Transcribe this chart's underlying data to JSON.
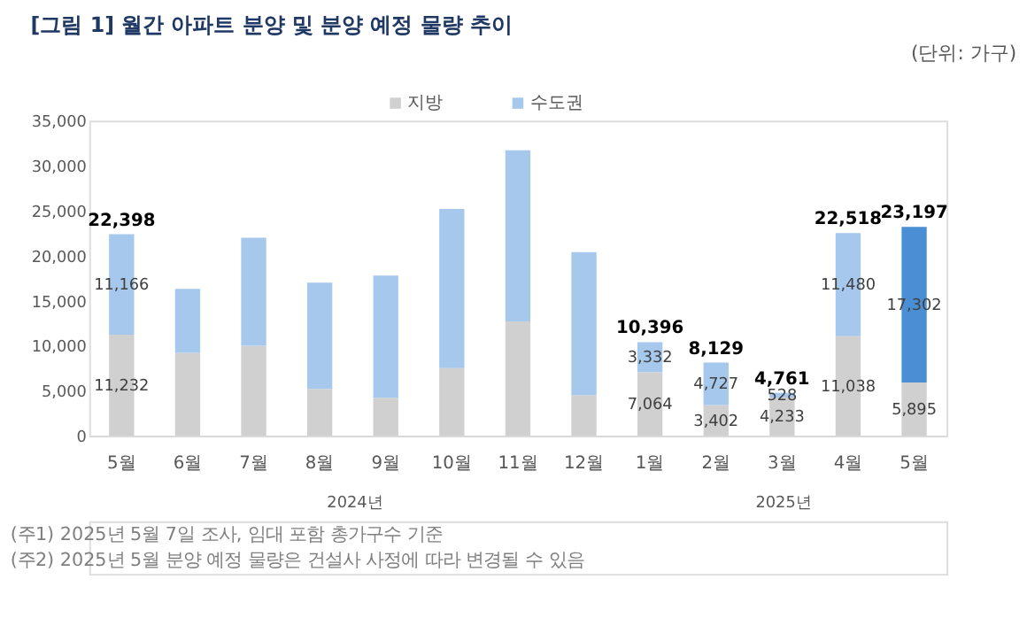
{
  "chart_data": {
    "type": "bar",
    "stacked": true,
    "title": "[그림 1] 월간 아파트 분양 및 분양 예정 물량 추이",
    "subtitle": "(단위: 가구)",
    "categories": [
      "5월",
      "6월",
      "7월",
      "8월",
      "9월",
      "10월",
      "11월",
      "12월",
      "1월",
      "2월",
      "3월",
      "4월",
      "5월"
    ],
    "series": [
      {
        "name": "지방",
        "color": "#d0d0d0",
        "values": [
          11232,
          9200,
          10000,
          5200,
          4200,
          7500,
          12700,
          4500,
          7064,
          3402,
          4233,
          11038,
          5895
        ],
        "value_labels": [
          "11,232",
          null,
          null,
          null,
          null,
          null,
          null,
          null,
          "7,064",
          "3,402",
          "4,233",
          "11,038",
          "5,895"
        ]
      },
      {
        "name": "수도권",
        "color": "#a6c8ec",
        "colors": [
          "#a6c8ec",
          "#a6c8ec",
          "#a6c8ec",
          "#a6c8ec",
          "#a6c8ec",
          "#a6c8ec",
          "#a6c8ec",
          "#a6c8ec",
          "#a6c8ec",
          "#a6c8ec",
          "#a6c8ec",
          "#a6c8ec",
          "#4a8fd4"
        ],
        "values": [
          11166,
          7100,
          12000,
          11800,
          13600,
          17700,
          19000,
          15900,
          3332,
          4727,
          528,
          11480,
          17302
        ],
        "value_labels": [
          "11,166",
          null,
          null,
          null,
          null,
          null,
          null,
          null,
          "3,332",
          "4,727",
          "528",
          "11,480",
          "17,302"
        ]
      }
    ],
    "totals": [
      "22,398",
      null,
      null,
      null,
      null,
      null,
      null,
      null,
      "10,396",
      "8,129",
      "4,761",
      "22,518",
      "23,197"
    ],
    "ylim": [
      0,
      35000
    ],
    "yticks": [
      0,
      {
        "value": 5000,
        "label": "5,000"
      },
      {
        "value": 10000,
        "label": "10,000"
      },
      {
        "value": 15000,
        "label": "15,000"
      },
      {
        "value": 20000,
        "label": "20,000"
      },
      {
        "value": 25000,
        "label": "25,000"
      },
      {
        "value": 30000,
        "label": "30,000"
      },
      {
        "value": 35000,
        "label": "35,000"
      }
    ],
    "grid": false,
    "legend": "top",
    "annotations": [
      "2024년",
      "2025년",
      "(주1) 2025년 5월 7일 조사, 임대 포함 총가구수 기준",
      "(주2) 2025년 5월 분양 예정 물량은 건설사 사정에 따라 변경될 수 있음"
    ]
  }
}
